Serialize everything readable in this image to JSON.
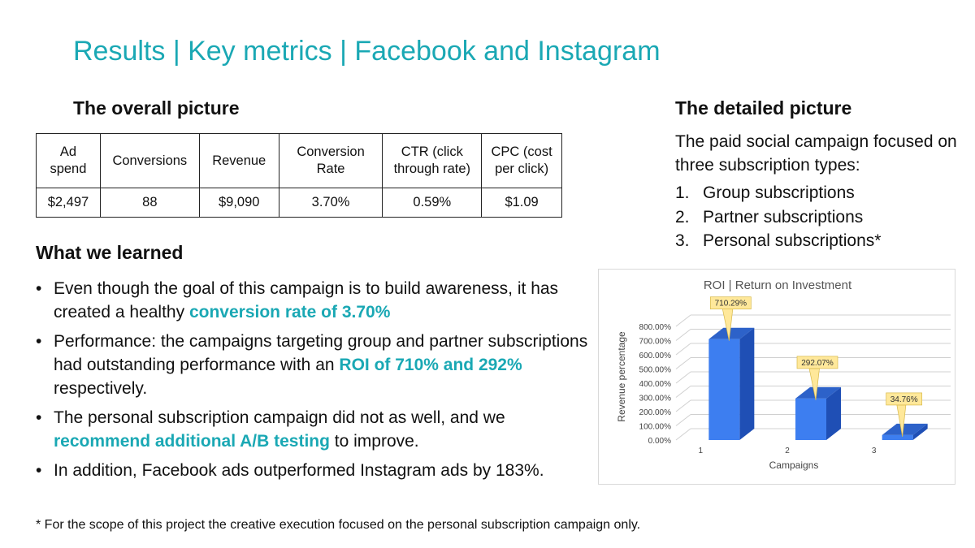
{
  "title": "Results | Key metrics | Facebook and Instagram",
  "overall": {
    "heading": "The overall picture",
    "columns": [
      [
        "Ad",
        "spend"
      ],
      [
        "Conversions"
      ],
      [
        "Revenue"
      ],
      [
        "Conversion",
        "Rate"
      ],
      [
        "CTR (click",
        "through rate)"
      ],
      [
        "CPC (cost",
        "per click)"
      ]
    ],
    "values": [
      "$2,497",
      "88",
      "$9,090",
      "3.70%",
      "0.59%",
      "$1.09"
    ]
  },
  "learned": {
    "heading": "What we learned",
    "bullets": [
      [
        {
          "text": "Even though the goal of this campaign is to build awareness, it has created a healthy "
        },
        {
          "text": "conversion rate of 3.70%",
          "hl": true
        }
      ],
      [
        {
          "text": "Performance: the campaigns targeting group and partner subscriptions had outstanding performance with an "
        },
        {
          "text": "ROI of 710% and 292%",
          "hl": true
        },
        {
          "text": " respectively."
        }
      ],
      [
        {
          "text": "The personal subscription campaign did not as well, and we "
        },
        {
          "text": "recommend additional A/B testing",
          "hl": true
        },
        {
          "text": " to improve."
        }
      ],
      [
        {
          "text": "In addition, Facebook ads outperformed Instagram ads by 183%."
        }
      ]
    ]
  },
  "detailed": {
    "heading": "The detailed picture",
    "intro": "The paid social campaign focused on three subscription types:",
    "items": [
      {
        "num": "1.",
        "label": "Group subscriptions"
      },
      {
        "num": "2.",
        "label": "Partner subscriptions"
      },
      {
        "num": "3.",
        "label": "Personal subscriptions*"
      }
    ]
  },
  "footnote": "* For the scope of this project the creative execution focused on the personal subscription campaign only.",
  "chart_data": {
    "type": "bar",
    "title": "ROI | Return on Investment",
    "xlabel": "Campaigns",
    "ylabel": "Revenue percentage",
    "categories": [
      "1",
      "2",
      "3"
    ],
    "values": [
      710.29,
      292.07,
      34.76
    ],
    "data_labels": [
      "710.29%",
      "292.07%",
      "34.76%"
    ],
    "ylim": [
      0,
      800
    ],
    "yticks": [
      0,
      100,
      200,
      300,
      400,
      500,
      600,
      700,
      800
    ],
    "ytick_labels": [
      "0.00%",
      "100.00%",
      "200.00%",
      "300.00%",
      "400.00%",
      "500.00%",
      "600.00%",
      "700.00%",
      "800.00%"
    ],
    "grid": true,
    "bar_color": "#3d7ef0",
    "label_color": "#ffe89a"
  }
}
